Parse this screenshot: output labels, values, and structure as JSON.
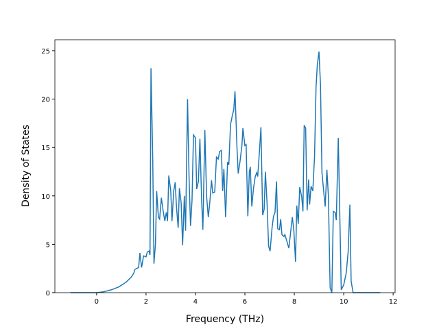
{
  "chart_data": {
    "type": "line",
    "x_label": "Frequency (THz)",
    "y_label": "Density of States",
    "xlim": [
      -1.69,
      12.08
    ],
    "ylim": [
      0,
      26.13
    ],
    "xticks": [
      0,
      2,
      4,
      6,
      8,
      10,
      12
    ],
    "yticks": [
      0,
      5,
      10,
      15,
      20,
      25
    ],
    "series": [
      {
        "color": "#1f77b4",
        "x": [
          -1.06,
          0,
          0.3,
          0.6,
          0.9,
          1.2,
          1.4,
          1.5,
          1.55,
          1.7,
          1.75,
          1.82,
          1.9,
          2.0,
          2.05,
          2.12,
          2.16,
          2.2,
          2.27,
          2.32,
          2.38,
          2.43,
          2.5,
          2.55,
          2.62,
          2.7,
          2.76,
          2.82,
          2.87,
          2.92,
          3.0,
          3.05,
          3.12,
          3.18,
          3.23,
          3.3,
          3.35,
          3.42,
          3.48,
          3.55,
          3.6,
          3.68,
          3.74,
          3.8,
          3.86,
          3.92,
          4.0,
          4.05,
          4.12,
          4.18,
          4.25,
          4.3,
          4.38,
          4.45,
          4.52,
          4.58,
          4.65,
          4.7,
          4.78,
          4.85,
          4.92,
          4.98,
          5.05,
          5.1,
          5.15,
          5.22,
          5.3,
          5.35,
          5.42,
          5.5,
          5.55,
          5.6,
          5.68,
          5.73,
          5.8,
          5.88,
          5.92,
          6.0,
          6.05,
          6.12,
          6.18,
          6.22,
          6.28,
          6.35,
          6.42,
          6.48,
          6.52,
          6.6,
          6.65,
          6.72,
          6.78,
          6.83,
          6.9,
          6.96,
          7.02,
          7.1,
          7.16,
          7.22,
          7.28,
          7.33,
          7.4,
          7.45,
          7.5,
          7.58,
          7.62,
          7.7,
          7.78,
          7.85,
          7.92,
          7.98,
          8.05,
          8.1,
          8.16,
          8.22,
          8.3,
          8.35,
          8.4,
          8.46,
          8.52,
          8.58,
          8.62,
          8.68,
          8.75,
          8.82,
          8.88,
          8.93,
          9.0,
          9.06,
          9.12,
          9.2,
          9.25,
          9.32,
          9.38,
          9.45,
          9.52,
          9.58,
          9.65,
          9.7,
          9.78,
          9.85,
          9.9,
          10.0,
          10.1,
          10.18,
          10.25,
          10.3,
          10.38,
          11.48
        ],
        "values": [
          0,
          0,
          0.1,
          0.3,
          0.6,
          1.1,
          1.6,
          2.0,
          2.4,
          2.6,
          4.1,
          2.6,
          3.8,
          3.7,
          4.2,
          4.3,
          3.9,
          23.2,
          14,
          3.0,
          5,
          10.5,
          7.8,
          7.6,
          9.8,
          8.3,
          7.4,
          8.3,
          7.4,
          12.1,
          10.5,
          7.4,
          10.5,
          11.4,
          8.9,
          6.7,
          10.8,
          9.3,
          4.9,
          10,
          6.4,
          20,
          12,
          6.9,
          9.5,
          16.3,
          16.0,
          10.7,
          11.5,
          15.9,
          9.5,
          6.5,
          16.8,
          10,
          7.8,
          9.3,
          11.6,
          10.3,
          10.4,
          14,
          13.8,
          14.6,
          14.7,
          10.5,
          12.8,
          7.8,
          13.5,
          13.2,
          17.4,
          18.4,
          18.9,
          20.8,
          15,
          12.3,
          13.5,
          15.2,
          17,
          15.2,
          15.3,
          7.9,
          12.5,
          13,
          8.9,
          10.8,
          12,
          12.4,
          12,
          15,
          17.1,
          8,
          8.6,
          12.5,
          9.1,
          4.8,
          4.3,
          6.7,
          7.9,
          8.3,
          11.5,
          6.6,
          6.5,
          7.6,
          6,
          5.8,
          6,
          5.3,
          4.6,
          6.2,
          7.8,
          6.5,
          3.2,
          9,
          7.1,
          10.9,
          9.9,
          8.4,
          17.3,
          17.0,
          8.5,
          11.7,
          9.1,
          11,
          10.5,
          14.1,
          21.2,
          23.5,
          24.9,
          21.5,
          12.4,
          10.2,
          8.9,
          12.7,
          10,
          0.5,
          0,
          8.4,
          8.3,
          7.5,
          16,
          7,
          0.3,
          0.8,
          2.0,
          4.2,
          9.1,
          1.2,
          0,
          0
        ]
      }
    ]
  }
}
